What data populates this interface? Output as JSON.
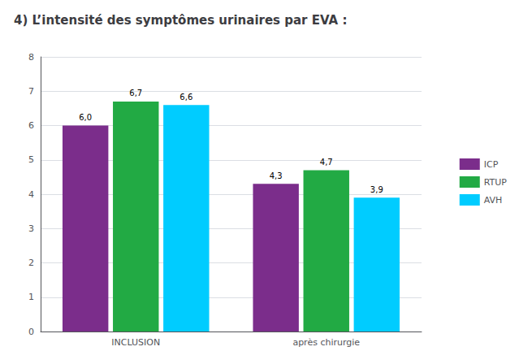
{
  "chart_data": {
    "type": "bar",
    "title": "4) L’intensité des symptômes urinaires par EVA :",
    "categories": [
      "INCLUSION",
      "après chirurgie"
    ],
    "series": [
      {
        "name": "ICP",
        "color": "#7B2D8B",
        "values": [
          6.0,
          4.3
        ],
        "value_labels": [
          "6,0",
          "4,3"
        ]
      },
      {
        "name": "RTUP",
        "color": "#22AA44",
        "values": [
          6.7,
          4.7
        ],
        "value_labels": [
          "6,7",
          "4,7"
        ]
      },
      {
        "name": "AVH",
        "color": "#00CCFF",
        "values": [
          6.6,
          3.9
        ],
        "value_labels": [
          "6,6",
          "3,9"
        ]
      }
    ],
    "ylim": [
      0,
      8
    ],
    "yticks": [
      0,
      1,
      2,
      3,
      4,
      5,
      6,
      7,
      8
    ],
    "grid": true,
    "legend": "right",
    "data_labels": true
  }
}
